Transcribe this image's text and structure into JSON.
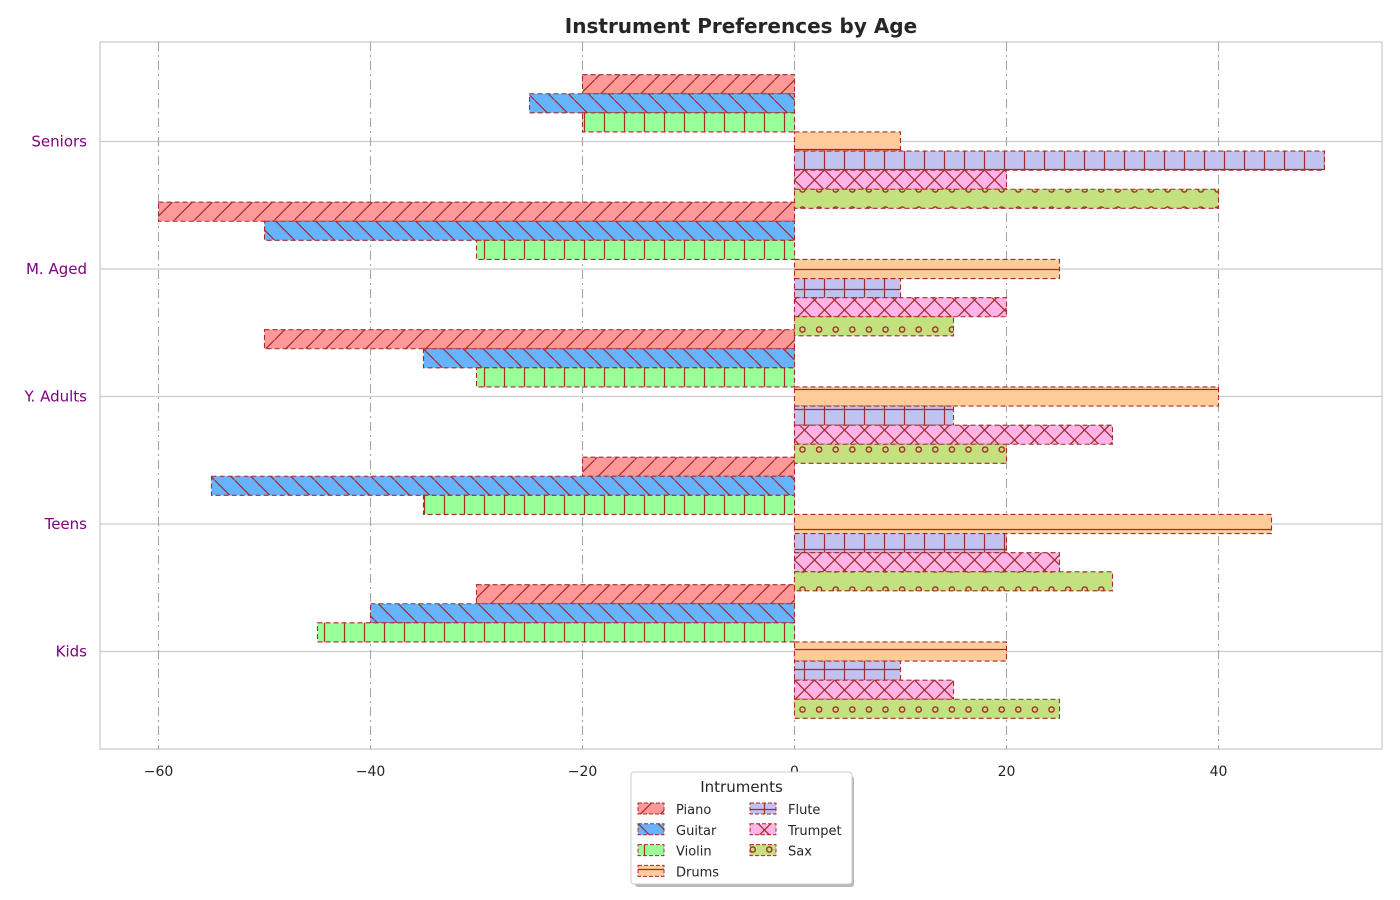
{
  "chart_data": {
    "type": "bar",
    "orientation": "horizontal",
    "title": "Instrument Preferences by Age",
    "xlabel": "",
    "ylabel": "",
    "categories": [
      "Kids",
      "Teens",
      "Y. Adults",
      "M. Aged",
      "Seniors"
    ],
    "xlim": [
      -65,
      55
    ],
    "xticks": [
      -60,
      -40,
      -20,
      0,
      20,
      40
    ],
    "xtick_labels": [
      "−60",
      "−40",
      "−20",
      "0",
      "20",
      "40"
    ],
    "grid": true,
    "legend": {
      "title": "Intruments",
      "placement": "bottom-center",
      "columns": 2
    },
    "series": [
      {
        "name": "Piano",
        "values": [
          -30,
          -20,
          -50,
          -60,
          -20
        ],
        "color": "#ff9999",
        "hatch": "diagonal-forward"
      },
      {
        "name": "Guitar",
        "values": [
          -40,
          -55,
          -35,
          -50,
          -25
        ],
        "color": "#66b3ff",
        "hatch": "diagonal-back"
      },
      {
        "name": "Violin",
        "values": [
          -45,
          -35,
          -30,
          -30,
          -20
        ],
        "color": "#99ff99",
        "hatch": "vertical"
      },
      {
        "name": "Drums",
        "values": [
          20,
          45,
          40,
          25,
          10
        ],
        "color": "#ffcc99",
        "hatch": "horizontal"
      },
      {
        "name": "Flute",
        "values": [
          10,
          20,
          15,
          10,
          50
        ],
        "color": "#c2c2f0",
        "hatch": "plus"
      },
      {
        "name": "Trumpet",
        "values": [
          15,
          25,
          30,
          20,
          20
        ],
        "color": "#ffb3e6",
        "hatch": "cross"
      },
      {
        "name": "Sax",
        "values": [
          25,
          30,
          20,
          15,
          40
        ],
        "color": "#c4e17f",
        "hatch": "circles"
      }
    ],
    "edge_color": "#a52a2a",
    "tick_label_color": "#800080"
  }
}
